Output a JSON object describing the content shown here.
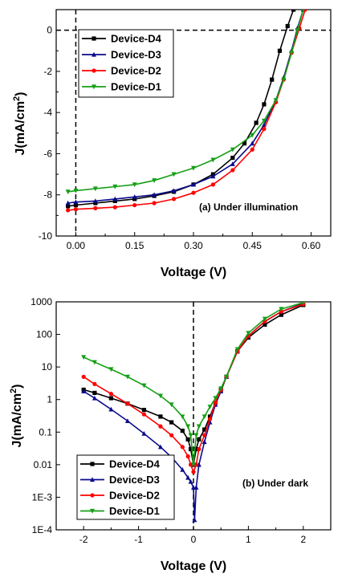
{
  "chart_data": [
    {
      "type": "line",
      "panel": "a",
      "annotation": "(a) Under illumination",
      "xlabel": "Voltage (V)",
      "ylabel_prefix": "J(mA/cm",
      "ylabel_sup": "2",
      "ylabel_suffix": ")",
      "xlim": [
        -0.05,
        0.65
      ],
      "ylim": [
        -10,
        1
      ],
      "x_ticks": [
        "0.00",
        "0.15",
        "0.30",
        "0.45",
        "0.60"
      ],
      "x_tick_values": [
        0,
        0.15,
        0.3,
        0.45,
        0.6
      ],
      "y_ticks": [
        "0",
        "-2",
        "-4",
        "-6",
        "-8",
        "-10"
      ],
      "y_tick_values": [
        0,
        -2,
        -4,
        -6,
        -8,
        -10
      ],
      "legend_position": "top-left",
      "series": [
        {
          "name": "Device-D4",
          "color": "#000000",
          "marker": "square",
          "x": [
            -0.02,
            0.0,
            0.05,
            0.1,
            0.15,
            0.2,
            0.25,
            0.3,
            0.35,
            0.4,
            0.43,
            0.46,
            0.48,
            0.5,
            0.52,
            0.54,
            0.555
          ],
          "y": [
            -8.55,
            -8.5,
            -8.4,
            -8.3,
            -8.2,
            -8.05,
            -7.85,
            -7.5,
            -7.0,
            -6.2,
            -5.5,
            -4.5,
            -3.6,
            -2.4,
            -1.0,
            0.2,
            1.0
          ]
        },
        {
          "name": "Device-D3",
          "color": "#0a0a8c",
          "marker": "triangle",
          "x": [
            -0.02,
            0.0,
            0.05,
            0.1,
            0.15,
            0.2,
            0.25,
            0.3,
            0.35,
            0.4,
            0.45,
            0.48,
            0.51,
            0.53,
            0.55,
            0.565,
            0.58
          ],
          "y": [
            -8.4,
            -8.35,
            -8.3,
            -8.2,
            -8.1,
            -8.0,
            -7.8,
            -7.5,
            -7.1,
            -6.5,
            -5.5,
            -4.6,
            -3.4,
            -2.3,
            -1.0,
            0.1,
            1.0
          ]
        },
        {
          "name": "Device-D2",
          "color": "#ff0000",
          "marker": "circle",
          "x": [
            -0.02,
            0.0,
            0.05,
            0.1,
            0.15,
            0.2,
            0.25,
            0.3,
            0.35,
            0.4,
            0.45,
            0.48,
            0.51,
            0.53,
            0.55,
            0.57,
            0.585
          ],
          "y": [
            -8.75,
            -8.7,
            -8.65,
            -8.6,
            -8.5,
            -8.4,
            -8.2,
            -7.9,
            -7.5,
            -6.8,
            -5.8,
            -4.8,
            -3.5,
            -2.4,
            -1.1,
            0.1,
            1.0
          ]
        },
        {
          "name": "Device-D1",
          "color": "#159f15",
          "marker": "triangle-down",
          "x": [
            -0.02,
            0.0,
            0.05,
            0.1,
            0.15,
            0.2,
            0.25,
            0.3,
            0.35,
            0.4,
            0.45,
            0.48,
            0.51,
            0.53,
            0.55,
            0.565,
            0.58
          ],
          "y": [
            -7.85,
            -7.8,
            -7.7,
            -7.6,
            -7.5,
            -7.3,
            -7.0,
            -6.7,
            -6.3,
            -5.8,
            -5.1,
            -4.4,
            -3.4,
            -2.4,
            -1.1,
            0.0,
            1.0
          ]
        }
      ]
    },
    {
      "type": "line",
      "panel": "b",
      "annotation": "(b) Under dark",
      "xlabel": "Voltage (V)",
      "ylabel_prefix": "J(mA/cm",
      "ylabel_sup": "2",
      "ylabel_suffix": ")",
      "yscale": "log",
      "xlim": [
        -2.5,
        2.5
      ],
      "ylim_exp": [
        -4,
        3
      ],
      "x_ticks": [
        "-2",
        "-1",
        "0",
        "1",
        "2"
      ],
      "x_tick_values": [
        -2,
        -1,
        0,
        1,
        2
      ],
      "y_ticks": [
        "1000",
        "100",
        "10",
        "1",
        "0.1",
        "0.01",
        "1E-3",
        "1E-4"
      ],
      "y_tick_exps": [
        3,
        2,
        1,
        0,
        -1,
        -2,
        -3,
        -4
      ],
      "legend_position": "bottom-left",
      "series": [
        {
          "name": "Device-D4",
          "color": "#000000",
          "marker": "square",
          "x": [
            -2.0,
            -1.8,
            -1.5,
            -1.2,
            -0.9,
            -0.6,
            -0.4,
            -0.2,
            -0.1,
            -0.05,
            0.0,
            0.05,
            0.1,
            0.2,
            0.3,
            0.4,
            0.5,
            0.6,
            0.8,
            1.0,
            1.3,
            1.6,
            2.0
          ],
          "y": [
            2.0,
            1.6,
            1.1,
            0.75,
            0.48,
            0.3,
            0.2,
            0.11,
            0.06,
            0.03,
            0.01,
            0.03,
            0.06,
            0.12,
            0.3,
            0.8,
            2.0,
            5.0,
            30,
            80,
            200,
            400,
            800
          ]
        },
        {
          "name": "Device-D3",
          "color": "#0a0a8c",
          "marker": "triangle",
          "x": [
            -2.0,
            -1.8,
            -1.5,
            -1.2,
            -0.9,
            -0.6,
            -0.4,
            -0.2,
            -0.1,
            -0.05,
            0.0,
            0.02,
            0.05,
            0.1,
            0.2,
            0.3,
            0.4,
            0.5,
            0.6,
            0.8,
            1.0,
            1.3,
            1.6,
            2.0
          ],
          "y": [
            1.8,
            1.1,
            0.5,
            0.22,
            0.09,
            0.035,
            0.017,
            0.007,
            0.004,
            0.003,
            0.002,
            0.0002,
            0.002,
            0.01,
            0.05,
            0.2,
            0.7,
            1.8,
            5.0,
            30,
            90,
            250,
            500,
            900
          ]
        },
        {
          "name": "Device-D2",
          "color": "#ff0000",
          "marker": "circle",
          "x": [
            -2.0,
            -1.8,
            -1.5,
            -1.2,
            -0.9,
            -0.6,
            -0.4,
            -0.2,
            -0.1,
            -0.05,
            0.0,
            0.05,
            0.1,
            0.2,
            0.3,
            0.4,
            0.5,
            0.6,
            0.8,
            1.0,
            1.3,
            1.6,
            2.0
          ],
          "y": [
            5.0,
            3.0,
            1.5,
            0.75,
            0.35,
            0.15,
            0.08,
            0.035,
            0.018,
            0.01,
            0.006,
            0.01,
            0.03,
            0.08,
            0.25,
            0.8,
            2.0,
            5.0,
            30,
            90,
            250,
            500,
            850
          ]
        },
        {
          "name": "Device-D1",
          "color": "#159f15",
          "marker": "triangle-down",
          "x": [
            -2.0,
            -1.8,
            -1.5,
            -1.2,
            -0.9,
            -0.6,
            -0.4,
            -0.2,
            -0.1,
            -0.05,
            0.0,
            0.05,
            0.1,
            0.2,
            0.3,
            0.4,
            0.5,
            0.6,
            0.8,
            1.0,
            1.3,
            1.6,
            2.0
          ],
          "y": [
            20,
            14,
            8.5,
            5.0,
            2.7,
            1.3,
            0.7,
            0.3,
            0.15,
            0.08,
            0.01,
            0.08,
            0.15,
            0.3,
            0.6,
            1.1,
            2.2,
            5.0,
            35,
            110,
            300,
            600,
            950
          ]
        }
      ]
    }
  ]
}
